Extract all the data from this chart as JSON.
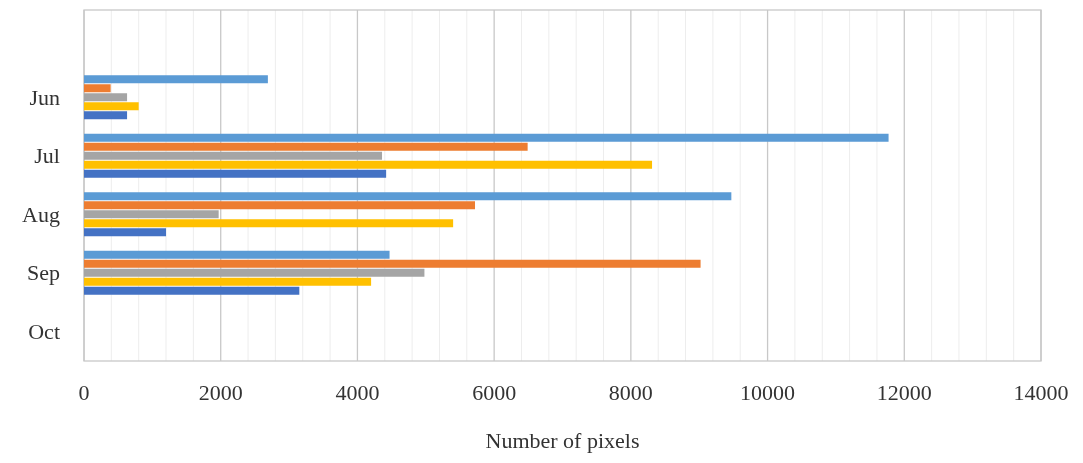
{
  "chart_data": {
    "type": "bar",
    "orientation": "horizontal",
    "xlabel": "Number of pixels",
    "categories": [
      null,
      "Jun",
      "Jul",
      "Aug",
      "Sep",
      "Oct"
    ],
    "series": [
      {
        "color": "#5b9bd5",
        "values": [
          null,
          2690,
          11770,
          9470,
          4470,
          null
        ]
      },
      {
        "color": "#ed7d31",
        "values": [
          null,
          390,
          6490,
          5720,
          9020,
          null
        ]
      },
      {
        "color": "#a5a5a5",
        "values": [
          null,
          630,
          4360,
          1970,
          4980,
          null
        ]
      },
      {
        "color": "#ffc000",
        "values": [
          null,
          800,
          8310,
          5400,
          4200,
          null
        ]
      },
      {
        "color": "#4472c4",
        "values": [
          null,
          630,
          4420,
          1200,
          3150,
          null
        ]
      }
    ],
    "xlim": [
      0,
      14000
    ],
    "xticks": [
      0,
      {
        "value": 400,
        "label": null
      },
      {
        "value": 800,
        "label": null
      },
      {
        "value": 1200,
        "label": null
      },
      {
        "value": 1600,
        "label": null
      },
      2000,
      {
        "value": 2400,
        "label": null
      },
      {
        "value": 2800,
        "label": null
      },
      {
        "value": 3200,
        "label": null
      },
      {
        "value": 3600,
        "label": null
      },
      4000,
      {
        "value": 4400,
        "label": null
      },
      {
        "value": 4800,
        "label": null
      },
      {
        "value": 5200,
        "label": null
      },
      {
        "value": 5600,
        "label": null
      },
      6000,
      {
        "value": 6400,
        "label": null
      },
      {
        "value": 6800,
        "label": null
      },
      {
        "value": 7200,
        "label": null
      },
      {
        "value": 7600,
        "label": null
      },
      8000,
      {
        "value": 8400,
        "label": null
      },
      {
        "value": 8800,
        "label": null
      },
      {
        "value": 9200,
        "label": null
      },
      {
        "value": 9600,
        "label": null
      },
      10000,
      {
        "value": 10400,
        "label": null
      },
      {
        "value": 10800,
        "label": null
      },
      {
        "value": 11200,
        "label": null
      },
      {
        "value": 11600,
        "label": null
      },
      12000,
      {
        "value": 12400,
        "label": null
      },
      {
        "value": 12800,
        "label": null
      },
      {
        "value": 13200,
        "label": null
      },
      {
        "value": 13600,
        "label": null
      },
      14000
    ],
    "grid": "x"
  }
}
